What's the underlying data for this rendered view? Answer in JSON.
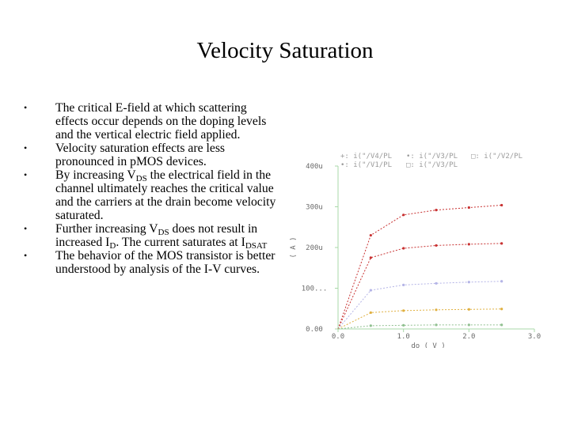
{
  "slide": {
    "title": "Velocity Saturation",
    "bullets": [
      {
        "marker": "•",
        "parts": [
          {
            "t": "The critical E-field at which scattering effects occur depends on the doping levels and the vertical electric field applied."
          }
        ]
      },
      {
        "marker": "•",
        "parts": [
          {
            "t": "Velocity saturation effects are less pronounced in pMOS devices."
          }
        ]
      },
      {
        "marker": "•",
        "parts": [
          {
            "t": "By increasing V"
          },
          {
            "sub": "DS"
          },
          {
            "t": " the electrical field in the channel ultimately reaches the critical value and the carriers at the drain become velocity saturated."
          }
        ]
      },
      {
        "marker": "•",
        "parts": [
          {
            "t": "Further increasing V"
          },
          {
            "sub": "DS"
          },
          {
            "t": " does not result in increased I"
          },
          {
            "sub": "D"
          },
          {
            "t": ". The current saturates at I"
          },
          {
            "sub": "DSAT"
          }
        ]
      },
      {
        "marker": "•",
        "parts": [
          {
            "t": "The behavior of the MOS transistor is better understood by analysis of the I-V curves."
          }
        ]
      }
    ]
  },
  "chart_data": {
    "type": "line",
    "ylabel": "( A )",
    "xlabel": "do ( V )",
    "x_ticks": [
      "0.0",
      "1.0",
      "2.0",
      "3.0"
    ],
    "y_ticks": [
      "0.00",
      "100...",
      "200u",
      "300u",
      "400u"
    ],
    "xlim": [
      0,
      3
    ],
    "ylim": [
      0,
      400
    ],
    "legend_rows": [
      [
        {
          "marker": "+:",
          "label": "i(\"/V4/PL"
        },
        {
          "marker": "•:",
          "label": "i(\"/V3/PL"
        },
        {
          "marker": "□:",
          "label": "i(\"/V2/PL"
        }
      ],
      [
        {
          "marker": "•:",
          "label": "i(\"/V1/PL"
        },
        {
          "marker": "□:",
          "label": "i(\"/V3/PL"
        }
      ]
    ],
    "series": [
      {
        "color": "#c83232",
        "x": [
          0,
          0.5,
          1.0,
          1.5,
          2.0,
          2.5
        ],
        "y": [
          0,
          230,
          280,
          292,
          298,
          304
        ]
      },
      {
        "color": "#c83232",
        "x": [
          0,
          0.5,
          1.0,
          1.5,
          2.0,
          2.5
        ],
        "y": [
          0,
          175,
          198,
          205,
          208,
          210
        ]
      },
      {
        "color": "#b4b4e6",
        "x": [
          0,
          0.5,
          1.0,
          1.5,
          2.0,
          2.5
        ],
        "y": [
          0,
          95,
          108,
          112,
          115,
          117
        ]
      },
      {
        "color": "#e0b040",
        "x": [
          0,
          0.5,
          1.0,
          1.5,
          2.0,
          2.5
        ],
        "y": [
          0,
          40,
          45,
          47,
          48,
          49
        ]
      },
      {
        "color": "#90c090",
        "x": [
          0,
          0.5,
          1.0,
          1.5,
          2.0,
          2.5
        ],
        "y": [
          0,
          8,
          9,
          10,
          10,
          10
        ]
      }
    ],
    "colors": {
      "axes": "#a8d8a8",
      "legend": "#9a9a9a",
      "labels": "#6a6a6a"
    }
  }
}
